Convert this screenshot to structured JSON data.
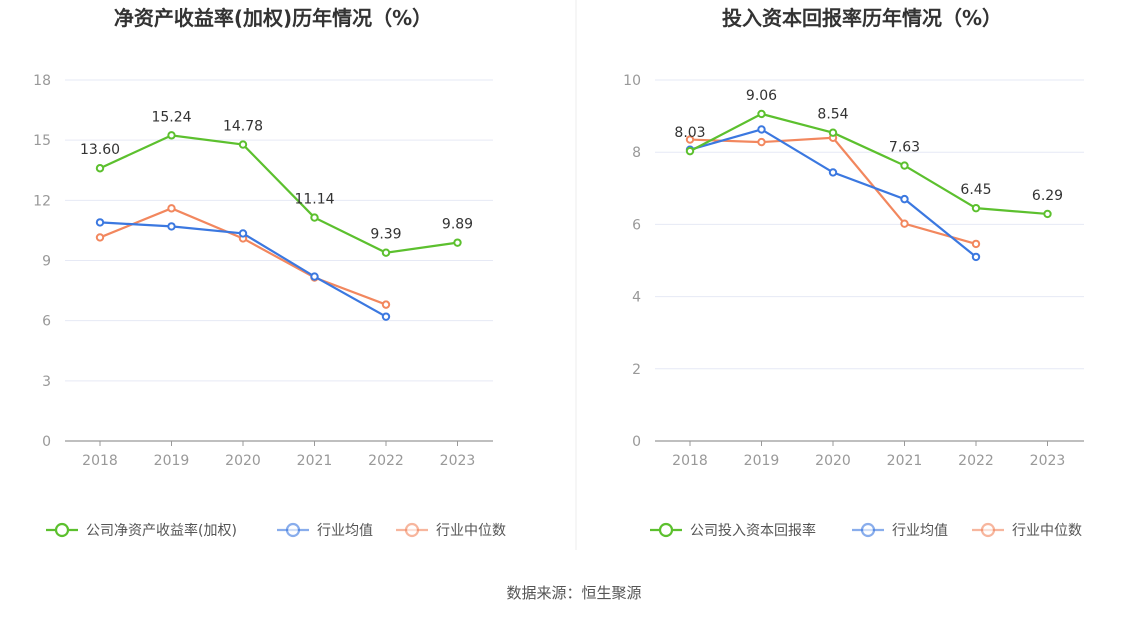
{
  "source": "数据来源：恒生聚源",
  "chart_data": [
    {
      "type": "line",
      "title": "净资产收益率(加权)历年情况（%）",
      "categories": [
        "2018",
        "2019",
        "2020",
        "2021",
        "2022",
        "2023"
      ],
      "ylim": [
        0,
        18
      ],
      "yticks": [
        "0",
        "3",
        "6",
        "9",
        "12",
        "15",
        "18"
      ],
      "grid": true,
      "legend_position": "bottom",
      "series": [
        {
          "name": "公司净资产收益率(加权)",
          "color": "#5cc02e",
          "values": [
            13.6,
            15.24,
            14.78,
            11.14,
            9.39,
            9.89
          ],
          "labels": [
            "13.60",
            "15.24",
            "14.78",
            "11.14",
            "9.39",
            "9.89"
          ]
        },
        {
          "name": "行业均值",
          "color": "#3b78e0",
          "values": [
            10.9,
            10.7,
            10.35,
            8.2,
            6.2,
            null
          ]
        },
        {
          "name": "行业中位数",
          "color": "#f2875e",
          "values": [
            10.15,
            11.6,
            10.1,
            8.15,
            6.8,
            null
          ]
        }
      ]
    },
    {
      "type": "line",
      "title": "投入资本回报率历年情况（%）",
      "categories": [
        "2018",
        "2019",
        "2020",
        "2021",
        "2022",
        "2023"
      ],
      "ylim": [
        0,
        10
      ],
      "yticks": [
        "0",
        "2",
        "4",
        "6",
        "8",
        "10"
      ],
      "grid": true,
      "legend_position": "bottom",
      "series": [
        {
          "name": "公司投入资本回报率",
          "color": "#5cc02e",
          "values": [
            8.03,
            9.06,
            8.54,
            7.63,
            6.45,
            6.29
          ],
          "labels": [
            "8.03",
            "9.06",
            "8.54",
            "7.63",
            "6.45",
            "6.29"
          ]
        },
        {
          "name": "行业均值",
          "color": "#3b78e0",
          "values": [
            8.07,
            8.63,
            7.44,
            6.7,
            5.1,
            null
          ]
        },
        {
          "name": "行业中位数",
          "color": "#f2875e",
          "values": [
            8.35,
            8.28,
            8.4,
            6.02,
            5.46,
            null
          ]
        }
      ]
    }
  ]
}
